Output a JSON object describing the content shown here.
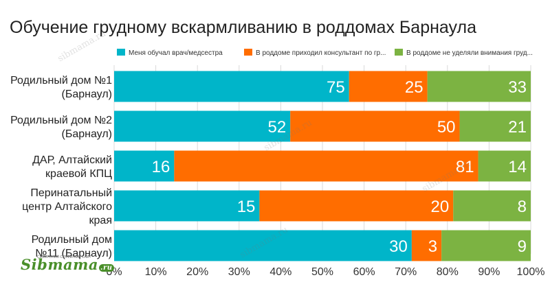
{
  "title": "Обучение грудному вскармливанию в роддомах Барнаула",
  "watermark": "sibmama.ru",
  "logo": {
    "text": "Sibmama",
    "suffix": ".ru",
    "tagline": "СИБИРСКИЙ СЕМЕЙНЫЙ САЙТ"
  },
  "chart_data": {
    "type": "bar",
    "orientation": "horizontal",
    "stacked": "percent",
    "title": "Обучение грудному вскармливанию в роддомах Барнаула",
    "categories": [
      [
        "Родильный дом №1",
        "(Барнаул)"
      ],
      [
        "Родильный дом №2",
        "(Барнаул)"
      ],
      [
        "ДАР, Алтайский",
        "краевой КПЦ"
      ],
      [
        "Перинатальный",
        "центр Алтайского",
        "края"
      ],
      [
        "Родильный дом",
        "№11 (Барнаул)"
      ]
    ],
    "series": [
      {
        "name": "Меня обучал врач/медсестра",
        "color": "#00b5c9",
        "values": [
          75,
          52,
          16,
          15,
          30
        ]
      },
      {
        "name": "В роддоме приходил консультант по гр...",
        "color": "#ff6d00",
        "values": [
          25,
          50,
          81,
          20,
          3
        ]
      },
      {
        "name": "В роддоме не уделяли внимания груд...",
        "color": "#7cb342",
        "values": [
          33,
          21,
          14,
          8,
          9
        ]
      }
    ],
    "xlim": [
      0,
      100
    ],
    "xticks": [
      "0%",
      "10%",
      "20%",
      "30%",
      "40%",
      "50%",
      "60%",
      "70%",
      "80%",
      "90%",
      "100%"
    ],
    "grid": true,
    "legend_position": "top"
  }
}
